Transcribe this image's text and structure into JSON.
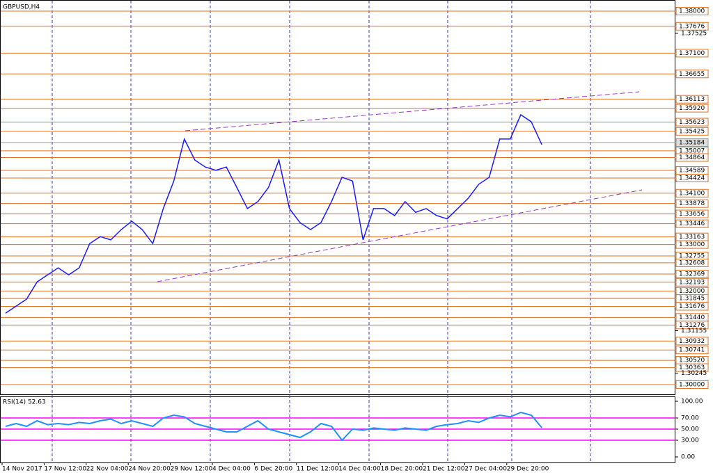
{
  "chart_data": [
    {
      "type": "line",
      "title": "GBPUSD,H4",
      "color": "#1a1aff",
      "level_color": "#e07020",
      "categories": [
        "14 Nov 2017",
        null,
        null,
        null,
        "17 Nov 12:00",
        null,
        null,
        null,
        "22 Nov 04:00",
        null,
        null,
        null,
        "24 Nov 20:00",
        null,
        null,
        null,
        "29 Nov 12:00",
        null,
        null,
        null,
        "4 Dec 04:00",
        null,
        null,
        null,
        "6 Dec 20:00",
        null,
        null,
        null,
        "11 Dec 12:00",
        null,
        null,
        null,
        "14 Dec 04:00",
        null,
        null,
        null,
        "18 Dec 20:00",
        null,
        null,
        null,
        "21 Dec 12:00",
        null,
        null,
        null,
        "27 Dec 04:00",
        null,
        null,
        null,
        "29 Dec 20:00",
        null,
        null,
        null
      ],
      "values": [
        1.3153,
        1.3168,
        1.3183,
        1.322,
        1.3235,
        1.325,
        1.3235,
        1.325,
        1.3302,
        1.3317,
        1.331,
        1.3332,
        1.335,
        1.3332,
        1.3302,
        1.3377,
        1.3436,
        1.3526,
        1.3481,
        1.3466,
        1.3459,
        1.3466,
        1.3422,
        1.3377,
        1.3392,
        1.3422,
        1.3481,
        1.3377,
        1.3347,
        1.3332,
        1.3347,
        1.3392,
        1.3444,
        1.3436,
        1.331,
        1.3377,
        1.3377,
        1.3362,
        1.3392,
        1.3369,
        1.3377,
        1.3362,
        1.3355,
        1.3377,
        1.3399,
        1.3429,
        1.3444,
        1.3526,
        1.3526,
        1.3578,
        1.3563,
        1.3514
      ],
      "ylim": [
        1.29791,
        1.38164
      ],
      "yticks": [
        {
          "value": 1.37525,
          "label": "1.37525"
        },
        {
          "value": 1.31155,
          "label": "1.31155"
        },
        {
          "value": 1.30245,
          "label": "1.30245"
        }
      ],
      "current_price": {
        "value": 1.35184,
        "label": "1.35184"
      },
      "levels": [
        {
          "value": 1.38,
          "label": "1.38000"
        },
        {
          "value": 1.37676,
          "label": "1.37676"
        },
        {
          "value": 1.371,
          "label": "1.37100"
        },
        {
          "value": 1.36655,
          "label": "1.36655"
        },
        {
          "value": 1.36113,
          "label": "1.36113"
        },
        {
          "value": 1.3592,
          "label": "1.35920"
        },
        {
          "value": 1.35623,
          "label": "1.35623"
        },
        {
          "value": 1.35425,
          "label": "1.35425"
        },
        {
          "value": 1.35007,
          "label": "1.35007"
        },
        {
          "value": 1.34864,
          "label": "1.34864"
        },
        {
          "value": 1.34589,
          "label": "1.34589"
        },
        {
          "value": 1.34424,
          "label": "1.34424"
        },
        {
          "value": 1.341,
          "label": "1.34100"
        },
        {
          "value": 1.33878,
          "label": "1.33878"
        },
        {
          "value": 1.33656,
          "label": "1.33656"
        },
        {
          "value": 1.33446,
          "label": "1.33446"
        },
        {
          "value": 1.33163,
          "label": "1.33163"
        },
        {
          "value": 1.33,
          "label": "1.33000"
        },
        {
          "value": 1.32755,
          "label": "1.32755"
        },
        {
          "value": 1.32608,
          "label": "1.32608"
        },
        {
          "value": 1.32369,
          "label": "1.32369"
        },
        {
          "value": 1.32193,
          "label": "1.32193"
        },
        {
          "value": 1.32,
          "label": "1.32000"
        },
        {
          "value": 1.31845,
          "label": "1.31845"
        },
        {
          "value": 1.31676,
          "label": "1.31676"
        },
        {
          "value": 1.3144,
          "label": "1.31440"
        },
        {
          "value": 1.31276,
          "label": "1.31276"
        },
        {
          "value": 1.30932,
          "label": "1.30932"
        },
        {
          "value": 1.30741,
          "label": "1.30741"
        },
        {
          "value": 1.3052,
          "label": "1.30520"
        },
        {
          "value": 1.30363,
          "label": "1.30363"
        },
        {
          "value": 1.3,
          "label": "1.30000"
        }
      ]
    },
    {
      "type": "line",
      "title": "RSI(14) 52.63",
      "color": "#1e90ff",
      "level_color": "#ff00ff",
      "values": [
        55,
        60,
        55,
        65,
        58,
        60,
        58,
        62,
        60,
        65,
        68,
        60,
        65,
        60,
        55,
        70,
        75,
        72,
        60,
        55,
        50,
        45,
        45,
        55,
        65,
        50,
        45,
        40,
        35,
        45,
        60,
        55,
        30,
        50,
        48,
        52,
        50,
        48,
        52,
        50,
        48,
        55,
        58,
        60,
        65,
        62,
        70,
        75,
        72,
        80,
        75,
        52.63
      ],
      "ylim": [
        0,
        100
      ],
      "yticks": [
        {
          "value": 100,
          "label": "100.00"
        },
        {
          "value": 70,
          "label": "70.00"
        },
        {
          "value": 50,
          "label": "50.00"
        },
        {
          "value": 30,
          "label": "30.00"
        },
        {
          "value": 0,
          "label": "0.00"
        }
      ],
      "levels": [
        70,
        50,
        30
      ]
    }
  ]
}
